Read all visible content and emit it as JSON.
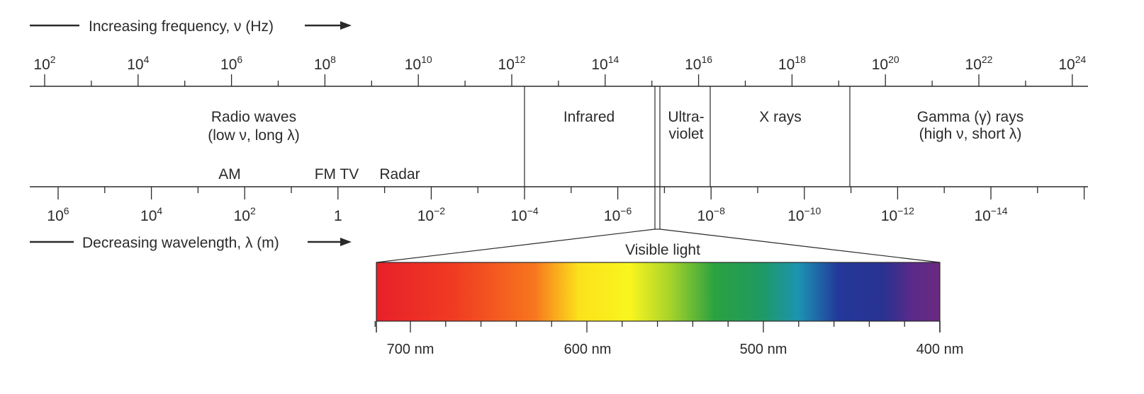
{
  "headers": {
    "frequency": "Increasing frequency, ν (Hz)",
    "wavelength": "Decreasing wavelength, λ (m)"
  },
  "frequency_ticks": [
    {
      "base": "10",
      "exp": "2"
    },
    {
      "base": "10",
      "exp": "4"
    },
    {
      "base": "10",
      "exp": "6"
    },
    {
      "base": "10",
      "exp": "8"
    },
    {
      "base": "10",
      "exp": "10"
    },
    {
      "base": "10",
      "exp": "12"
    },
    {
      "base": "10",
      "exp": "14"
    },
    {
      "base": "10",
      "exp": "16"
    },
    {
      "base": "10",
      "exp": "18"
    },
    {
      "base": "10",
      "exp": "20"
    },
    {
      "base": "10",
      "exp": "22"
    },
    {
      "base": "10",
      "exp": "24"
    }
  ],
  "wavelength_ticks": [
    {
      "base": "10",
      "exp": "6"
    },
    {
      "base": "10",
      "exp": "4"
    },
    {
      "base": "10",
      "exp": "2"
    },
    {
      "base": "1",
      "exp": ""
    },
    {
      "base": "10",
      "exp": "−2"
    },
    {
      "base": "10",
      "exp": "−4"
    },
    {
      "base": "10",
      "exp": "−6"
    },
    {
      "base": "10",
      "exp": "−8"
    },
    {
      "base": "10",
      "exp": "−10"
    },
    {
      "base": "10",
      "exp": "−12"
    },
    {
      "base": "10",
      "exp": "−14"
    }
  ],
  "regions": {
    "radio": [
      "Radio waves",
      "(low ν, long λ)"
    ],
    "infrared": "Infrared",
    "ultraviolet": [
      "Ultra-",
      "violet"
    ],
    "xrays": "X rays",
    "gamma": [
      "Gamma (γ) rays",
      "(high ν, short λ)"
    ]
  },
  "bands": {
    "am": "AM",
    "fmtv": "FM TV",
    "radar": "Radar"
  },
  "visible": {
    "title": "Visible light",
    "labels": [
      "700 nm",
      "600 nm",
      "500 nm",
      "400 nm"
    ],
    "wavelengths_nm": [
      700,
      600,
      500,
      400
    ]
  },
  "colors": {
    "line": "#2a2a2a",
    "spectrum": [
      "#e8202a",
      "#f03c22",
      "#f7761e",
      "#fbe21c",
      "#f9f51e",
      "#a9d42a",
      "#2aa240",
      "#1f9a60",
      "#1c93b2",
      "#23389a",
      "#2a3290",
      "#5a2a8a",
      "#6a2a80"
    ]
  }
}
